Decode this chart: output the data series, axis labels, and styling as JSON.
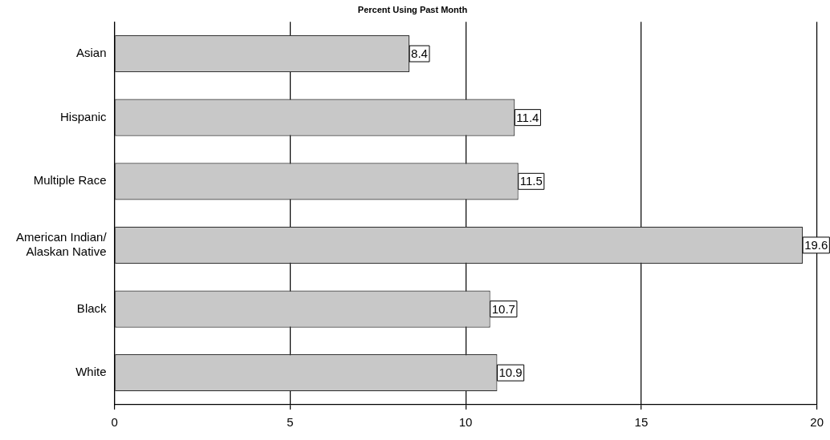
{
  "chart_data": {
    "type": "bar",
    "orientation": "horizontal",
    "title": "Percent Using Past Month",
    "categories": [
      "Asian",
      "Hispanic",
      "Multiple Race",
      "American Indian/\nAlaskan Native",
      "Black",
      "White"
    ],
    "values": [
      8.4,
      11.4,
      11.5,
      19.6,
      10.7,
      10.9
    ],
    "color": "#c8c8c8",
    "xlim": [
      0,
      20
    ],
    "xticks": [
      0,
      5,
      10,
      15,
      20
    ],
    "grid": "x",
    "legend": false,
    "data_labels": true
  }
}
